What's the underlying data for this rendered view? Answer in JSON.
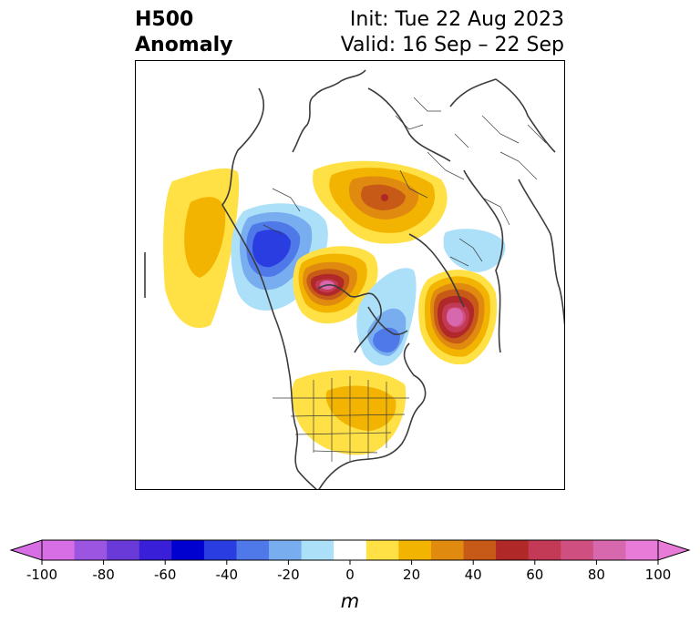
{
  "title": {
    "line1": "H500",
    "line2": "Anomaly",
    "init": "Init: Tue 22 Aug 2023",
    "valid": "Valid: 16 Sep – 22 Sep"
  },
  "colorbar": {
    "unit_label": "m",
    "ticks": [
      "-100",
      "-80",
      "-60",
      "-40",
      "-20",
      "0",
      "20",
      "40",
      "60",
      "80",
      "100"
    ],
    "colors": [
      "#d86ee6",
      "#9b55e0",
      "#6a3ad8",
      "#3a1fd8",
      "#0000cf",
      "#2a3de0",
      "#4f78e8",
      "#78aef0",
      "#ace0f8",
      "#ffffff",
      "#ffe045",
      "#f2b400",
      "#e08a10",
      "#c85a18",
      "#b02828",
      "#c23a55",
      "#cf5080",
      "#d868ae",
      "#e87ad8"
    ],
    "extend_low": "#d86ee6",
    "extend_high": "#e87ad8"
  }
}
